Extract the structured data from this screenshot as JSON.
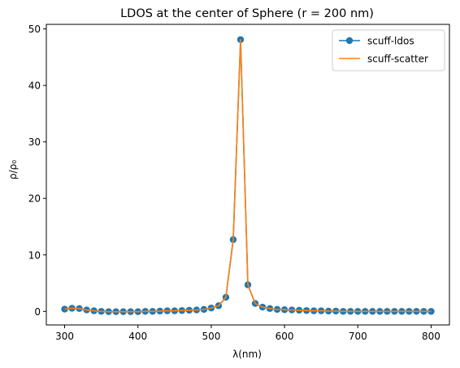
{
  "chart_data": {
    "type": "line",
    "title": "LDOS at the center of Sphere (r = 200 nm)",
    "xlabel": "λ(nm)",
    "ylabel": "ρ/ρ₀",
    "xlim": [
      275,
      825
    ],
    "ylim": [
      -2.4,
      50.8
    ],
    "xticks": [
      300,
      400,
      500,
      600,
      700,
      800
    ],
    "yticks": [
      0,
      10,
      20,
      30,
      40,
      50
    ],
    "grid": false,
    "legend_position": "upper right",
    "x": [
      300,
      310,
      320,
      330,
      340,
      350,
      360,
      370,
      380,
      390,
      400,
      410,
      420,
      430,
      440,
      450,
      460,
      470,
      480,
      490,
      500,
      510,
      520,
      530,
      540,
      550,
      560,
      570,
      580,
      590,
      600,
      610,
      620,
      630,
      640,
      650,
      660,
      670,
      680,
      690,
      700,
      710,
      720,
      730,
      740,
      750,
      760,
      770,
      780,
      790,
      800
    ],
    "series": [
      {
        "name": "scuff-ldos",
        "style": "line-marker",
        "color": "#1f77b4",
        "values": [
          0.4,
          0.55,
          0.5,
          0.25,
          0.1,
          0.0,
          -0.05,
          -0.05,
          -0.05,
          -0.05,
          -0.05,
          0.0,
          0.0,
          0.05,
          0.1,
          0.1,
          0.15,
          0.2,
          0.25,
          0.35,
          0.6,
          1.0,
          2.5,
          12.7,
          48.1,
          4.7,
          1.4,
          0.75,
          0.5,
          0.35,
          0.3,
          0.25,
          0.2,
          0.15,
          0.1,
          0.1,
          0.05,
          0.05,
          0.0,
          0.0,
          0.0,
          0.0,
          0.0,
          0.0,
          0.0,
          0.0,
          0.0,
          0.0,
          0.0,
          0.0,
          0.0
        ]
      },
      {
        "name": "scuff-scatter",
        "style": "line",
        "color": "#ff7f0e",
        "values": [
          0.4,
          0.55,
          0.5,
          0.25,
          0.1,
          0.0,
          -0.05,
          -0.05,
          -0.05,
          -0.05,
          -0.05,
          0.0,
          0.0,
          0.05,
          0.1,
          0.1,
          0.15,
          0.2,
          0.25,
          0.35,
          0.6,
          1.0,
          2.5,
          12.7,
          48.1,
          4.7,
          1.4,
          0.75,
          0.5,
          0.35,
          0.3,
          0.25,
          0.2,
          0.15,
          0.1,
          0.1,
          0.05,
          0.05,
          0.0,
          0.0,
          0.0,
          0.0,
          0.0,
          0.0,
          0.0,
          0.0,
          0.0,
          0.0,
          0.0,
          0.0,
          0.0
        ]
      }
    ]
  }
}
